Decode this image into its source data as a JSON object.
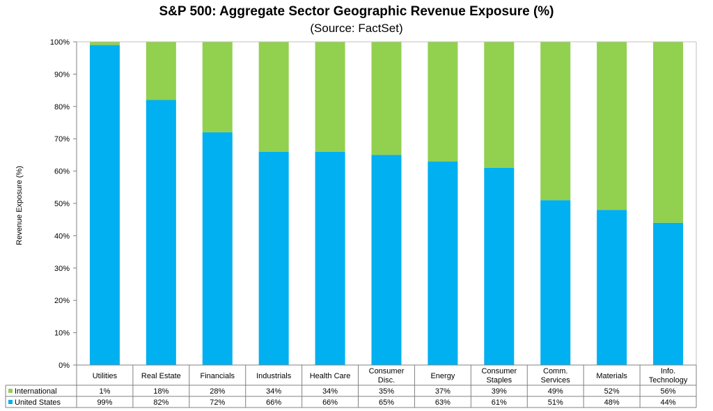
{
  "chart_data": {
    "type": "bar",
    "stacked": true,
    "title": "S&P 500: Aggregate Sector Geographic Revenue Exposure (%)",
    "subtitle": "(Source: FactSet)",
    "ylabel": "Revenue Exposure (%)",
    "ylim": [
      0,
      100
    ],
    "yticks": [
      "0%",
      "10%",
      "20%",
      "30%",
      "40%",
      "50%",
      "60%",
      "70%",
      "80%",
      "90%",
      "100%"
    ],
    "grid": false,
    "categories": [
      [
        "Utilities"
      ],
      [
        "Real Estate"
      ],
      [
        "Financials"
      ],
      [
        "Industrials"
      ],
      [
        "Health Care"
      ],
      [
        "Consumer",
        "Disc."
      ],
      [
        "Energy"
      ],
      [
        "Consumer",
        "Staples"
      ],
      [
        "Comm.",
        "Services"
      ],
      [
        "Materials"
      ],
      [
        "Info.",
        "Technology"
      ]
    ],
    "series": [
      {
        "name": "United States",
        "color": "#00b0f0",
        "values": [
          99,
          82,
          72,
          66,
          66,
          65,
          63,
          61,
          51,
          48,
          44
        ],
        "labels": [
          "99%",
          "82%",
          "72%",
          "66%",
          "66%",
          "65%",
          "63%",
          "61%",
          "51%",
          "48%",
          "44%"
        ]
      },
      {
        "name": "International",
        "color": "#92d050",
        "values": [
          1,
          18,
          28,
          34,
          34,
          35,
          37,
          39,
          49,
          52,
          56
        ],
        "labels": [
          "1%",
          "18%",
          "28%",
          "34%",
          "34%",
          "35%",
          "37%",
          "39%",
          "49%",
          "52%",
          "56%"
        ]
      }
    ],
    "table_rows": [
      "International",
      "United States"
    ]
  }
}
